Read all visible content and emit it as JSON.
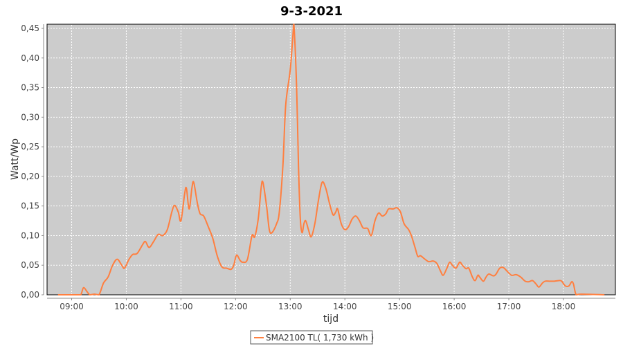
{
  "chart_data": {
    "type": "line",
    "title": "9-3-2021",
    "xlabel": "tijd",
    "ylabel": "Watt/Wp",
    "ylim": [
      0,
      0.45
    ],
    "xlim": [
      "08:33",
      "18:57"
    ],
    "grid": true,
    "legend_position": "bottom",
    "y_ticks": [
      "0,00",
      "0,05",
      "0,10",
      "0,15",
      "0,20",
      "0,25",
      "0,30",
      "0,35",
      "0,40",
      "0,45"
    ],
    "x_ticks": [
      "09:00",
      "10:00",
      "11:00",
      "12:00",
      "13:00",
      "14:00",
      "15:00",
      "16:00",
      "17:00",
      "18:00"
    ],
    "colors": {
      "series": "#ff7f3f",
      "plot_background": "#cccccc",
      "grid": "#ffffff"
    },
    "series": [
      {
        "name": "SMA2100 TL( 1,730 kWh )",
        "points": [
          [
            "08:45",
            0
          ],
          [
            "09:05",
            0
          ],
          [
            "09:10",
            0
          ],
          [
            "09:13",
            0.012
          ],
          [
            "09:17",
            0.005
          ],
          [
            "09:20",
            0
          ],
          [
            "09:25",
            0.001
          ],
          [
            "09:30",
            0
          ],
          [
            "09:35",
            0.02
          ],
          [
            "09:40",
            0.03
          ],
          [
            "09:45",
            0.05
          ],
          [
            "09:50",
            0.06
          ],
          [
            "09:55",
            0.05
          ],
          [
            "09:58",
            0.045
          ],
          [
            "10:03",
            0.06
          ],
          [
            "10:07",
            0.068
          ],
          [
            "10:12",
            0.07
          ],
          [
            "10:18",
            0.085
          ],
          [
            "10:21",
            0.09
          ],
          [
            "10:25",
            0.08
          ],
          [
            "10:30",
            0.09
          ],
          [
            "10:35",
            0.102
          ],
          [
            "10:40",
            0.1
          ],
          [
            "10:45",
            0.11
          ],
          [
            "10:50",
            0.14
          ],
          [
            "10:53",
            0.151
          ],
          [
            "10:57",
            0.14
          ],
          [
            "11:00",
            0.125
          ],
          [
            "11:04",
            0.17
          ],
          [
            "11:06",
            0.18
          ],
          [
            "11:09",
            0.145
          ],
          [
            "11:12",
            0.18
          ],
          [
            "11:14",
            0.19
          ],
          [
            "11:18",
            0.155
          ],
          [
            "11:21",
            0.137
          ],
          [
            "11:25",
            0.133
          ],
          [
            "11:30",
            0.115
          ],
          [
            "11:35",
            0.095
          ],
          [
            "11:40",
            0.065
          ],
          [
            "11:45",
            0.047
          ],
          [
            "11:50",
            0.045
          ],
          [
            "11:55",
            0.043
          ],
          [
            "11:58",
            0.05
          ],
          [
            "12:01",
            0.067
          ],
          [
            "12:05",
            0.058
          ],
          [
            "12:08",
            0.055
          ],
          [
            "12:13",
            0.06
          ],
          [
            "12:18",
            0.1
          ],
          [
            "12:21",
            0.098
          ],
          [
            "12:25",
            0.13
          ],
          [
            "12:28",
            0.18
          ],
          [
            "12:30",
            0.19
          ],
          [
            "12:34",
            0.15
          ],
          [
            "12:37",
            0.11
          ],
          [
            "12:40",
            0.105
          ],
          [
            "12:45",
            0.12
          ],
          [
            "12:48",
            0.14
          ],
          [
            "12:52",
            0.22
          ],
          [
            "12:55",
            0.32
          ],
          [
            "13:00",
            0.38
          ],
          [
            "13:03",
            0.44
          ],
          [
            "13:04",
            0.46
          ],
          [
            "13:07",
            0.35
          ],
          [
            "13:09",
            0.22
          ],
          [
            "13:11",
            0.13
          ],
          [
            "13:13",
            0.105
          ],
          [
            "13:15",
            0.12
          ],
          [
            "13:17",
            0.125
          ],
          [
            "13:20",
            0.11
          ],
          [
            "13:23",
            0.098
          ],
          [
            "13:27",
            0.12
          ],
          [
            "13:31",
            0.16
          ],
          [
            "13:35",
            0.19
          ],
          [
            "13:39",
            0.18
          ],
          [
            "13:43",
            0.155
          ],
          [
            "13:47",
            0.135
          ],
          [
            "13:50",
            0.14
          ],
          [
            "13:52",
            0.145
          ],
          [
            "13:56",
            0.12
          ],
          [
            "14:00",
            0.11
          ],
          [
            "14:04",
            0.115
          ],
          [
            "14:08",
            0.128
          ],
          [
            "14:12",
            0.133
          ],
          [
            "14:16",
            0.125
          ],
          [
            "14:20",
            0.113
          ],
          [
            "14:25",
            0.112
          ],
          [
            "14:29",
            0.1
          ],
          [
            "14:33",
            0.125
          ],
          [
            "14:37",
            0.138
          ],
          [
            "14:41",
            0.133
          ],
          [
            "14:45",
            0.137
          ],
          [
            "14:48",
            0.145
          ],
          [
            "14:53",
            0.145
          ],
          [
            "14:57",
            0.147
          ],
          [
            "15:01",
            0.14
          ],
          [
            "15:05",
            0.12
          ],
          [
            "15:10",
            0.11
          ],
          [
            "15:13",
            0.1
          ],
          [
            "15:17",
            0.08
          ],
          [
            "15:20",
            0.065
          ],
          [
            "15:23",
            0.066
          ],
          [
            "15:28",
            0.06
          ],
          [
            "15:32",
            0.056
          ],
          [
            "15:37",
            0.057
          ],
          [
            "15:41",
            0.053
          ],
          [
            "15:45",
            0.04
          ],
          [
            "15:48",
            0.033
          ],
          [
            "15:52",
            0.045
          ],
          [
            "15:55",
            0.055
          ],
          [
            "15:58",
            0.05
          ],
          [
            "16:02",
            0.045
          ],
          [
            "16:06",
            0.055
          ],
          [
            "16:09",
            0.05
          ],
          [
            "16:13",
            0.044
          ],
          [
            "16:16",
            0.045
          ],
          [
            "16:20",
            0.03
          ],
          [
            "16:23",
            0.024
          ],
          [
            "16:26",
            0.033
          ],
          [
            "16:28",
            0.03
          ],
          [
            "16:32",
            0.023
          ],
          [
            "16:35",
            0.03
          ],
          [
            "16:38",
            0.035
          ],
          [
            "16:43",
            0.032
          ],
          [
            "16:46",
            0.035
          ],
          [
            "16:50",
            0.045
          ],
          [
            "16:54",
            0.046
          ],
          [
            "16:58",
            0.04
          ],
          [
            "17:03",
            0.033
          ],
          [
            "17:08",
            0.034
          ],
          [
            "17:13",
            0.03
          ],
          [
            "17:18",
            0.023
          ],
          [
            "17:22",
            0.022
          ],
          [
            "17:26",
            0.024
          ],
          [
            "17:30",
            0.018
          ],
          [
            "17:33",
            0.013
          ],
          [
            "17:37",
            0.02
          ],
          [
            "17:40",
            0.023
          ],
          [
            "17:45",
            0.023
          ],
          [
            "17:50",
            0.023
          ],
          [
            "17:55",
            0.024
          ],
          [
            "17:58",
            0.023
          ],
          [
            "18:02",
            0.015
          ],
          [
            "18:06",
            0.015
          ],
          [
            "18:09",
            0.022
          ],
          [
            "18:11",
            0.018
          ],
          [
            "18:14",
            0
          ],
          [
            "18:20",
            0.001
          ],
          [
            "18:45",
            0
          ]
        ]
      }
    ]
  }
}
